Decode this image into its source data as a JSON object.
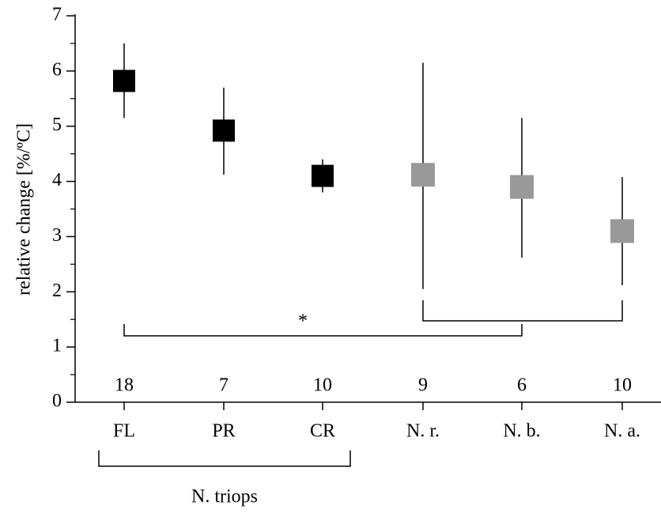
{
  "chart_data": {
    "type": "errorpoint",
    "ylabel": "relative change [%/ºC]",
    "categories": [
      "FL",
      "PR",
      "CR",
      "N. r.",
      "N. b.",
      "N. a."
    ],
    "values": [
      5.82,
      4.92,
      4.1,
      4.12,
      3.9,
      3.1
    ],
    "lower": [
      5.15,
      4.12,
      3.8,
      2.05,
      2.62,
      2.12
    ],
    "upper": [
      6.5,
      5.7,
      4.4,
      6.15,
      5.15,
      4.08
    ],
    "point_colors": [
      "#000000",
      "#000000",
      "#000000",
      "#999999",
      "#999999",
      "#999999"
    ],
    "n": [
      18,
      7,
      10,
      9,
      6,
      10
    ],
    "annotation": "*",
    "group_label": "N. triops",
    "ylim": [
      0,
      7
    ],
    "yticks": [
      0,
      1,
      2,
      3,
      4,
      5,
      6,
      7
    ]
  }
}
